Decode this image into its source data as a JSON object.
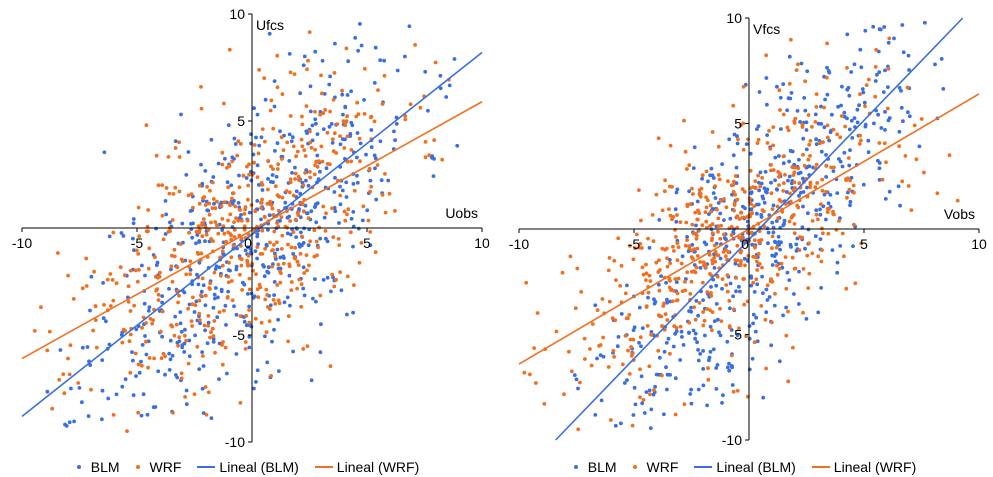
{
  "colors": {
    "BLM": "#3a6fe0",
    "WRF": "#f07020"
  },
  "legend": {
    "blm": "BLM",
    "wrf": "WRF",
    "lineal_blm": "Lineal (BLM)",
    "lineal_wrf": "Lineal (WRF)"
  },
  "chart_data": [
    {
      "type": "scatter",
      "title": "",
      "xlabel": "Uobs",
      "ylabel": "Ufcs",
      "xlim": [
        -10,
        10
      ],
      "ylim": [
        -10,
        10
      ],
      "xticks": [
        "-10",
        "-5",
        "0",
        "5",
        "10"
      ],
      "yticks": [
        "-10",
        "-5",
        "0",
        "5",
        "10"
      ],
      "grid": false,
      "legend_position": "bottom",
      "series": [
        {
          "name": "BLM",
          "n_points": 600,
          "mean_x": 0.0,
          "mean_y": -0.3,
          "std_x": 3.6,
          "slope": 0.85,
          "noise": 3.2,
          "seed": 11
        },
        {
          "name": "WRF",
          "n_points": 600,
          "mean_x": -0.8,
          "mean_y": -0.8,
          "std_x": 3.6,
          "slope": 0.62,
          "noise": 3.0,
          "seed": 23
        }
      ],
      "trendlines": [
        {
          "name": "Lineal (BLM)",
          "slope": 0.85,
          "intercept": -0.3
        },
        {
          "name": "Lineal (WRF)",
          "slope": 0.6,
          "intercept": -0.1
        }
      ]
    },
    {
      "type": "scatter",
      "title": "",
      "xlabel": "Vobs",
      "ylabel": "Vfcs",
      "xlim": [
        -10,
        10
      ],
      "ylim": [
        -10,
        10
      ],
      "xticks": [
        "-10",
        "-5",
        "0",
        "5",
        "10"
      ],
      "yticks": [
        "-10",
        "-5",
        "0",
        "5",
        "10"
      ],
      "grid": false,
      "legend_position": "bottom",
      "series": [
        {
          "name": "BLM",
          "n_points": 600,
          "mean_x": 0.6,
          "mean_y": 0.4,
          "std_x": 3.4,
          "slope": 1.15,
          "noise": 3.0,
          "seed": 37
        },
        {
          "name": "WRF",
          "n_points": 600,
          "mean_x": -0.5,
          "mean_y": -0.3,
          "std_x": 3.8,
          "slope": 0.68,
          "noise": 2.8,
          "seed": 53
        }
      ],
      "trendlines": [
        {
          "name": "Lineal (BLM)",
          "slope": 1.13,
          "intercept": -0.5
        },
        {
          "name": "Lineal (WRF)",
          "slope": 0.64,
          "intercept": 0.0
        }
      ]
    }
  ]
}
